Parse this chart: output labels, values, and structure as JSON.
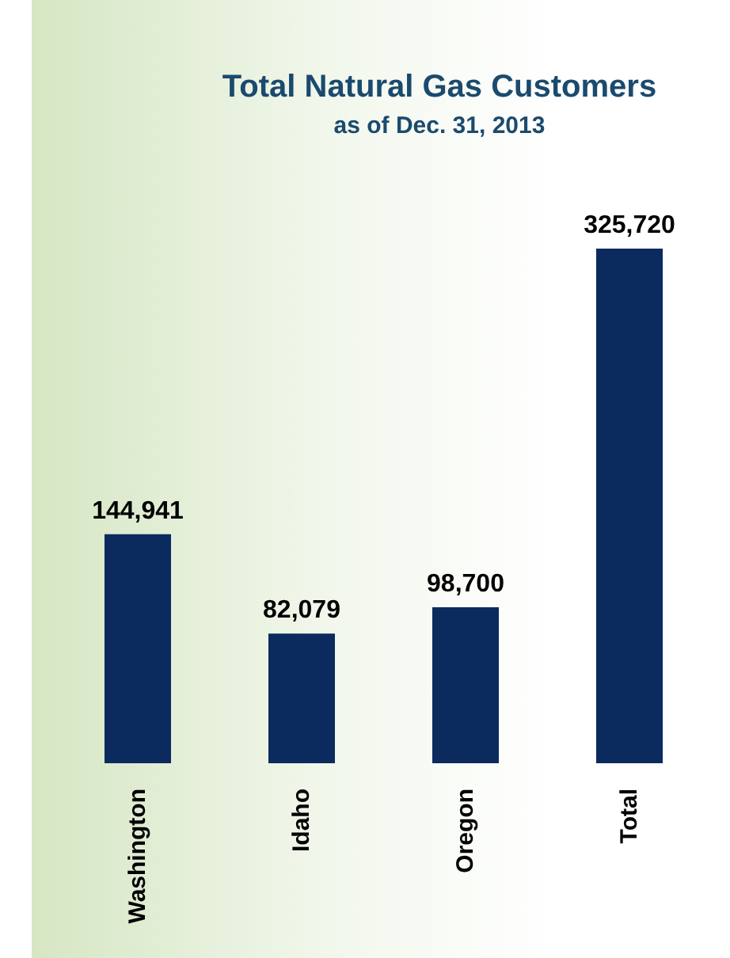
{
  "chart_data": {
    "type": "bar",
    "title": "Total Natural Gas Customers",
    "subtitle": "as of Dec. 31, 2013",
    "categories": [
      "Washington",
      "Idaho",
      "Oregon",
      "Total"
    ],
    "values": [
      144941,
      82079,
      98700,
      325720
    ],
    "color": "#0b2a5e",
    "value_labels": [
      "144,941",
      "82,079",
      "98,700",
      "325,720"
    ],
    "grid": false,
    "legend": false
  }
}
